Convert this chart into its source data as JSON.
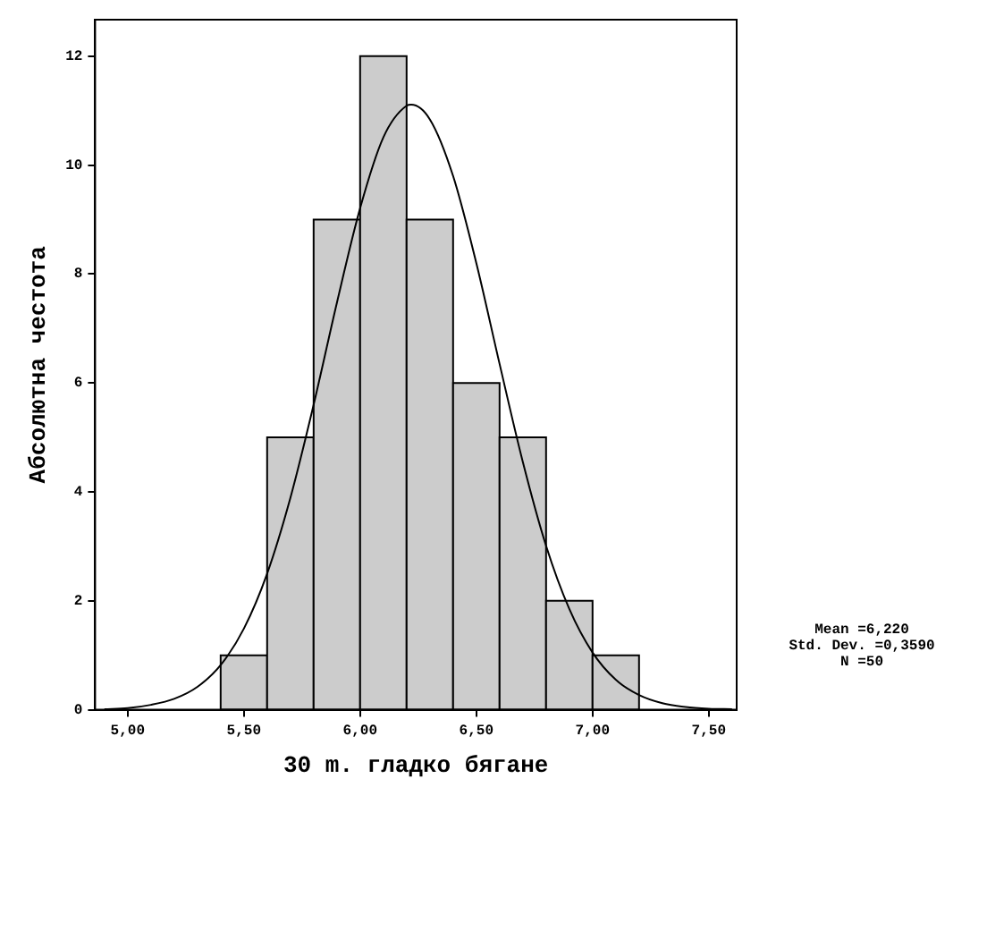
{
  "chart_data": {
    "type": "histogram",
    "xlabel": "30 m. гладко бягане",
    "ylabel": "Абсолютна честота",
    "bins": [
      5.4,
      5.6,
      5.8,
      6.0,
      6.2,
      6.4,
      6.6,
      6.8,
      7.0,
      7.2
    ],
    "values": [
      1,
      5,
      9,
      12,
      9,
      6,
      5,
      2,
      1
    ],
    "color": "#cccccc",
    "series": [
      {
        "type": "line",
        "color": "#000000",
        "x": [
          4.9,
          5.0,
          5.1,
          5.2,
          5.3,
          5.4,
          5.5,
          5.6,
          5.7,
          5.8,
          5.9,
          6.0,
          6.1,
          6.2,
          6.22,
          6.3,
          6.4,
          6.5,
          6.6,
          6.7,
          6.8,
          6.9,
          7.0,
          7.1,
          7.2,
          7.3,
          7.4,
          7.5,
          7.6
        ],
        "values": [
          0.01,
          0.03,
          0.09,
          0.2,
          0.42,
          0.82,
          1.49,
          2.5,
          3.89,
          5.6,
          7.47,
          9.21,
          10.51,
          11.09,
          11.11,
          10.84,
          9.8,
          8.2,
          6.35,
          4.55,
          3.01,
          1.85,
          1.05,
          0.55,
          0.27,
          0.12,
          0.05,
          0.02,
          0.01
        ]
      }
    ],
    "xlim": [
      4.86,
      7.62
    ],
    "ylim": [
      0,
      12.67
    ],
    "xticks": [
      {
        "value": 5,
        "label": "5,00"
      },
      {
        "value": 5.5,
        "label": "5,50"
      },
      {
        "value": 6,
        "label": "6,00"
      },
      {
        "value": 6.5,
        "label": "6,50"
      },
      {
        "value": 7,
        "label": "7,00"
      },
      {
        "value": 7.5,
        "label": "7,50"
      }
    ],
    "yticks": [
      0,
      2,
      4,
      6,
      8,
      10,
      12
    ],
    "marker": "none",
    "line_style": "solid",
    "annotations": [
      "Mean =6,220",
      "Std. Dev. =0,3590",
      "N =50"
    ]
  }
}
